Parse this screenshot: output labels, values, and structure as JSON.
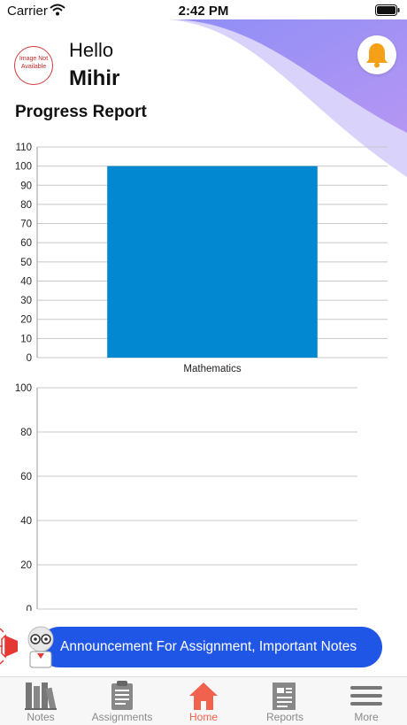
{
  "status_bar": {
    "carrier": "Carrier",
    "time": "2:42 PM"
  },
  "header": {
    "avatar_text": "Image Not Available",
    "greeting": "Hello",
    "user_name": "Mihir",
    "section_title": "Progress Report"
  },
  "chart_data": [
    {
      "type": "bar",
      "categories": [
        "Mathematics"
      ],
      "values": [
        100
      ],
      "ylim": [
        0,
        110
      ],
      "yticks": [
        0,
        10,
        20,
        30,
        40,
        50,
        60,
        70,
        80,
        90,
        100,
        110
      ],
      "grid": true,
      "bar_color": "#0288d1"
    },
    {
      "type": "bar",
      "categories": [],
      "values": [],
      "ylim": [
        0,
        100
      ],
      "yticks": [
        0,
        20,
        40,
        60,
        80,
        100
      ],
      "grid": true
    }
  ],
  "announcement": {
    "text": "Announcement For Assignment, Important Notes"
  },
  "tabs": [
    {
      "label": "Notes",
      "icon": "books-icon"
    },
    {
      "label": "Assignments",
      "icon": "clipboard-icon"
    },
    {
      "label": "Home",
      "icon": "home-icon",
      "active": true
    },
    {
      "label": "Reports",
      "icon": "report-icon"
    },
    {
      "label": "More",
      "icon": "menu-icon"
    }
  ],
  "colors": {
    "accent": "#f0624d",
    "banner": "#1f56e6",
    "bell": "#f5a017",
    "wave": "#a894f2",
    "bar": "#0288d1"
  }
}
